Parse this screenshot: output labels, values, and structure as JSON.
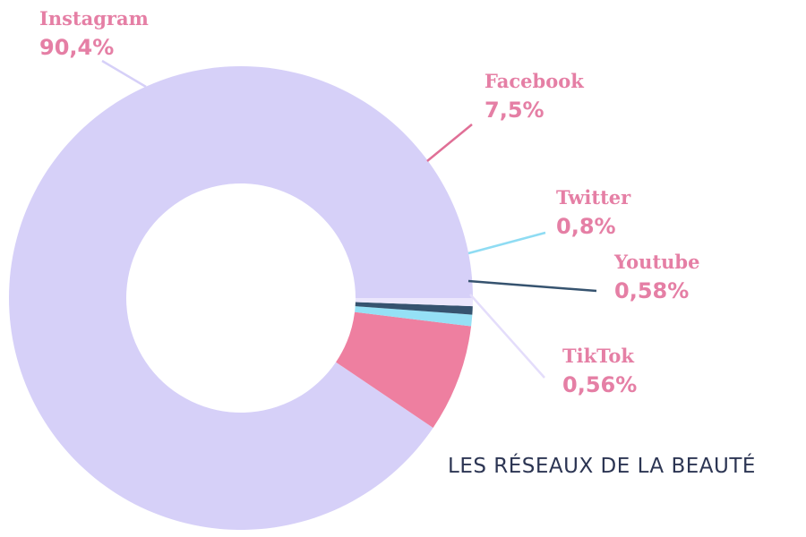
{
  "chart_data": {
    "type": "pie",
    "variant": "donut",
    "title": "LES RÉSEAUX DE LA BEAUTÉ",
    "label_color": "#e57fa5",
    "title_color": "#2c3553",
    "series": [
      {
        "name": "Instagram",
        "value": 90.4,
        "value_label": "90,4%",
        "color": "#d6d0f8",
        "leader_color": "#d6d0f8",
        "label_position": "top-left"
      },
      {
        "name": "Facebook",
        "value": 7.5,
        "value_label": "7,5%",
        "color": "#ee7fa0",
        "leader_color": "#e06f96",
        "label_position": "upper-right"
      },
      {
        "name": "Twitter",
        "value": 0.8,
        "value_label": "0,8%",
        "color": "#95e0f5",
        "leader_color": "#8fdcf3",
        "label_position": "right"
      },
      {
        "name": "Youtube",
        "value": 0.58,
        "value_label": "0,58%",
        "color": "#36536f",
        "leader_color": "#36536f",
        "label_position": "right"
      },
      {
        "name": "TikTok",
        "value": 0.56,
        "value_label": "0,56%",
        "color": "#ebe6fc",
        "leader_color": "#e4ddfb",
        "label_position": "lower-right"
      }
    ]
  }
}
